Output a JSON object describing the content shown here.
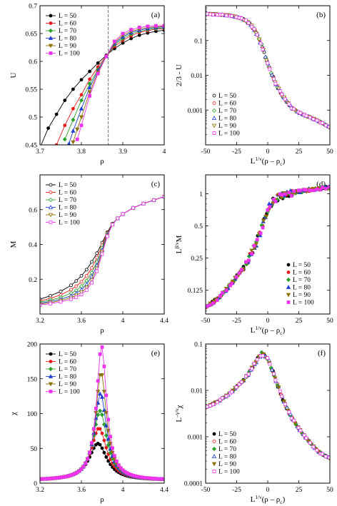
{
  "colors": {
    "L50": "#000000",
    "L60": "#e41a1c",
    "L70": "#2ca02c",
    "L80": "#1f3fd0",
    "L90": "#8c7000",
    "L100": "#ee33ee"
  },
  "chart_data": [
    {
      "type": "line",
      "tag": "(a)",
      "xlabel": "ρ",
      "ylabel": "U",
      "xlim": [
        3.7,
        4.0
      ],
      "ylim": [
        0.45,
        0.7
      ],
      "yscale": "linear",
      "xticks": [
        3.7,
        3.8,
        3.9,
        4.0
      ],
      "xtick_labels": [
        "3.7",
        "3.8",
        "3.9",
        "4"
      ],
      "yticks": [
        0.45,
        0.5,
        0.55,
        0.6,
        0.65,
        0.7
      ],
      "ytick_labels": [
        "0.45",
        "0.5",
        "0.55",
        "0.6",
        "0.65",
        "0.7"
      ],
      "vline": 3.865,
      "legend_position": "top-left",
      "legend_markers": "filled",
      "series": [
        {
          "name": "L = 50",
          "color_key": "L50",
          "x": [
            3.7,
            3.72,
            3.74,
            3.76,
            3.78,
            3.8,
            3.82,
            3.84,
            3.86,
            3.88,
            3.9,
            3.92,
            3.94,
            3.96,
            3.98,
            4.0
          ],
          "y": [
            0.445,
            0.48,
            0.505,
            0.53,
            0.55,
            0.567,
            0.582,
            0.597,
            0.611,
            0.623,
            0.633,
            0.641,
            0.647,
            0.651,
            0.654,
            0.656
          ]
        },
        {
          "name": "L = 60",
          "color_key": "L60",
          "x": [
            3.74,
            3.76,
            3.78,
            3.8,
            3.82,
            3.84,
            3.86,
            3.88,
            3.9,
            3.92,
            3.94,
            3.96,
            3.98,
            4.0
          ],
          "y": [
            0.45,
            0.485,
            0.515,
            0.54,
            0.568,
            0.59,
            0.61,
            0.627,
            0.638,
            0.646,
            0.652,
            0.655,
            0.658,
            0.659
          ]
        },
        {
          "name": "L = 70",
          "color_key": "L70",
          "x": [
            3.76,
            3.78,
            3.8,
            3.82,
            3.84,
            3.86,
            3.88,
            3.9,
            3.92,
            3.94,
            3.96,
            3.98,
            4.0
          ],
          "y": [
            0.46,
            0.495,
            0.53,
            0.56,
            0.585,
            0.609,
            0.63,
            0.641,
            0.649,
            0.654,
            0.657,
            0.659,
            0.66
          ]
        },
        {
          "name": "L = 80",
          "color_key": "L80",
          "x": [
            3.77,
            3.78,
            3.8,
            3.82,
            3.84,
            3.86,
            3.88,
            3.9,
            3.92,
            3.94,
            3.96,
            3.98,
            4.0
          ],
          "y": [
            0.452,
            0.475,
            0.515,
            0.553,
            0.583,
            0.609,
            0.632,
            0.644,
            0.652,
            0.656,
            0.659,
            0.661,
            0.662
          ]
        },
        {
          "name": "L = 90",
          "color_key": "L90",
          "x": [
            3.78,
            3.79,
            3.8,
            3.82,
            3.84,
            3.86,
            3.88,
            3.9,
            3.92,
            3.94,
            3.96,
            3.98,
            4.0
          ],
          "y": [
            0.455,
            0.478,
            0.5,
            0.545,
            0.58,
            0.609,
            0.634,
            0.647,
            0.654,
            0.658,
            0.661,
            0.662,
            0.663
          ]
        },
        {
          "name": "L = 100",
          "color_key": "L100",
          "x": [
            3.79,
            3.8,
            3.82,
            3.84,
            3.86,
            3.88,
            3.9,
            3.92,
            3.94,
            3.96,
            3.98,
            4.0
          ],
          "y": [
            0.46,
            0.485,
            0.538,
            0.578,
            0.609,
            0.636,
            0.65,
            0.657,
            0.661,
            0.663,
            0.664,
            0.664
          ]
        }
      ]
    },
    {
      "type": "scatter",
      "tag": "(b)",
      "xlabel": "L^{1/ν}(ρ – ρ_c)",
      "ylabel": "2/3 - U",
      "xlim": [
        -50,
        50
      ],
      "ylim": [
        0.0001,
        1.0
      ],
      "yscale": "log",
      "xticks": [
        -50,
        -25,
        0,
        25,
        50
      ],
      "xtick_labels": [
        "-50",
        "-25",
        "0",
        "25",
        "50"
      ],
      "yticks": [
        0.001,
        0.01,
        0.1
      ],
      "ytick_labels": [
        "0.001",
        "0.01",
        "0.1"
      ],
      "legend_position": "bottom-left",
      "legend_markers": "open",
      "curve": {
        "x": [
          -50,
          -40,
          -30,
          -20,
          -15,
          -10,
          -5,
          0,
          5,
          10,
          15,
          20,
          25,
          30,
          35,
          40,
          45,
          50
        ],
        "y": [
          0.58,
          0.56,
          0.52,
          0.42,
          0.32,
          0.19,
          0.075,
          0.022,
          0.0075,
          0.0033,
          0.0018,
          0.0011,
          0.00085,
          0.0007,
          0.0006,
          0.0005,
          0.0004,
          0.00032
        ]
      },
      "series": [
        {
          "name": "L = 50",
          "color_key": "L50"
        },
        {
          "name": "L = 60",
          "color_key": "L60"
        },
        {
          "name": "L = 70",
          "color_key": "L70"
        },
        {
          "name": "L = 80",
          "color_key": "L80"
        },
        {
          "name": "L = 90",
          "color_key": "L90"
        },
        {
          "name": "L = 100",
          "color_key": "L100"
        }
      ]
    },
    {
      "type": "line",
      "tag": "(c)",
      "xlabel": "ρ",
      "ylabel": "M",
      "xlim": [
        3.2,
        4.4
      ],
      "ylim": [
        0.0,
        0.8
      ],
      "yscale": "linear",
      "xticks": [
        3.2,
        3.6,
        4.0,
        4.4
      ],
      "xtick_labels": [
        "3.2",
        "3.6",
        "4",
        "4.4"
      ],
      "yticks": [
        0.2,
        0.4,
        0.6
      ],
      "ytick_labels": [
        "0.2",
        "0.4",
        "0.6"
      ],
      "legend_position": "top-left",
      "legend_markers": "open",
      "series": [
        {
          "name": "L = 50",
          "color_key": "L50",
          "x": [
            3.2,
            3.3,
            3.4,
            3.5,
            3.55,
            3.6,
            3.65,
            3.7,
            3.75,
            3.8,
            3.85,
            3.9,
            3.95,
            4.0,
            4.1,
            4.2,
            4.3,
            4.4
          ],
          "y": [
            0.085,
            0.105,
            0.13,
            0.165,
            0.19,
            0.22,
            0.255,
            0.3,
            0.35,
            0.41,
            0.47,
            0.52,
            0.55,
            0.575,
            0.61,
            0.635,
            0.655,
            0.675
          ]
        },
        {
          "name": "L = 60",
          "color_key": "L60",
          "x": [
            3.2,
            3.3,
            3.4,
            3.5,
            3.55,
            3.6,
            3.65,
            3.7,
            3.75,
            3.8,
            3.85,
            3.9,
            3.95,
            4.0,
            4.1,
            4.2,
            4.3,
            4.4
          ],
          "y": [
            0.075,
            0.09,
            0.11,
            0.14,
            0.16,
            0.185,
            0.22,
            0.265,
            0.325,
            0.395,
            0.465,
            0.518,
            0.55,
            0.575,
            0.61,
            0.635,
            0.655,
            0.675
          ]
        },
        {
          "name": "L = 70",
          "color_key": "L70",
          "x": [
            3.2,
            3.3,
            3.4,
            3.5,
            3.55,
            3.6,
            3.65,
            3.7,
            3.75,
            3.8,
            3.85,
            3.9,
            3.95,
            4.0,
            4.1,
            4.2,
            4.3,
            4.4
          ],
          "y": [
            0.068,
            0.08,
            0.095,
            0.12,
            0.135,
            0.16,
            0.192,
            0.238,
            0.3,
            0.38,
            0.46,
            0.517,
            0.55,
            0.575,
            0.61,
            0.635,
            0.655,
            0.675
          ]
        },
        {
          "name": "L = 80",
          "color_key": "L80",
          "x": [
            3.2,
            3.3,
            3.4,
            3.5,
            3.55,
            3.6,
            3.65,
            3.7,
            3.75,
            3.8,
            3.85,
            3.9,
            3.95,
            4.0,
            4.1,
            4.2,
            4.3,
            4.4
          ],
          "y": [
            0.062,
            0.072,
            0.085,
            0.105,
            0.12,
            0.14,
            0.17,
            0.215,
            0.28,
            0.367,
            0.455,
            0.516,
            0.55,
            0.575,
            0.61,
            0.635,
            0.655,
            0.675
          ]
        },
        {
          "name": "L = 90",
          "color_key": "L90",
          "x": [
            3.2,
            3.3,
            3.4,
            3.5,
            3.55,
            3.6,
            3.65,
            3.7,
            3.75,
            3.8,
            3.85,
            3.9,
            3.95,
            4.0,
            4.1,
            4.2,
            4.3,
            4.4
          ],
          "y": [
            0.057,
            0.066,
            0.077,
            0.094,
            0.107,
            0.125,
            0.153,
            0.196,
            0.262,
            0.356,
            0.451,
            0.515,
            0.55,
            0.575,
            0.61,
            0.635,
            0.655,
            0.675
          ]
        },
        {
          "name": "L = 100",
          "color_key": "L100",
          "x": [
            3.2,
            3.3,
            3.4,
            3.5,
            3.55,
            3.6,
            3.65,
            3.7,
            3.75,
            3.8,
            3.85,
            3.9,
            3.95,
            4.0,
            4.1,
            4.2,
            4.3,
            4.4
          ],
          "y": [
            0.052,
            0.06,
            0.07,
            0.085,
            0.096,
            0.112,
            0.138,
            0.18,
            0.246,
            0.345,
            0.447,
            0.514,
            0.55,
            0.575,
            0.61,
            0.635,
            0.655,
            0.675
          ]
        }
      ]
    },
    {
      "type": "scatter",
      "tag": "(d)",
      "xlabel": "L^{1/ν}(ρ – ρ_c)",
      "ylabel": "L^{β/ν}M",
      "xlim": [
        -50,
        50
      ],
      "ylim": [
        0.075,
        1.5
      ],
      "yscale": "log",
      "xticks": [
        -50,
        -25,
        0,
        25,
        50
      ],
      "xtick_labels": [
        "-50",
        "-25",
        "0",
        "25",
        "50"
      ],
      "yticks": [
        0.125,
        0.25,
        0.5,
        1
      ],
      "ytick_labels": [
        "0.125",
        "0.25",
        "0.5",
        "1"
      ],
      "legend_position": "bottom-right",
      "legend_markers": "filled",
      "curve": {
        "x": [
          -50,
          -40,
          -30,
          -20,
          -15,
          -10,
          -5,
          0,
          5,
          10,
          15,
          20,
          25,
          30,
          35,
          40,
          45,
          50
        ],
        "y": [
          0.085,
          0.105,
          0.14,
          0.2,
          0.25,
          0.33,
          0.47,
          0.72,
          0.88,
          0.95,
          0.99,
          1.02,
          1.05,
          1.07,
          1.09,
          1.11,
          1.13,
          1.15
        ]
      },
      "series": [
        {
          "name": "L = 50",
          "color_key": "L50"
        },
        {
          "name": "L = 60",
          "color_key": "L60"
        },
        {
          "name": "L = 70",
          "color_key": "L70"
        },
        {
          "name": "L = 80",
          "color_key": "L80"
        },
        {
          "name": "L = 90",
          "color_key": "L90"
        },
        {
          "name": "L = 100",
          "color_key": "L100"
        }
      ]
    },
    {
      "type": "line",
      "tag": "(e)",
      "xlabel": "ρ",
      "ylabel": "χ",
      "xlim": [
        3.2,
        4.4
      ],
      "ylim": [
        0,
        200
      ],
      "yscale": "linear",
      "xticks": [
        3.2,
        3.6,
        4.0,
        4.4
      ],
      "xtick_labels": [
        "3.2",
        "3.6",
        "4",
        "4.4"
      ],
      "yticks": [
        0,
        50,
        100,
        150,
        200
      ],
      "ytick_labels": [
        "0",
        "50",
        "100",
        "150",
        "200"
      ],
      "legend_position": "top-left",
      "legend_markers": "filled",
      "series": [
        {
          "name": "L = 50",
          "color_key": "L50",
          "peak": 57,
          "center": 3.76,
          "width": 0.11
        },
        {
          "name": "L = 60",
          "color_key": "L60",
          "peak": 79,
          "center": 3.77,
          "width": 0.095
        },
        {
          "name": "L = 70",
          "color_key": "L70",
          "peak": 104,
          "center": 3.78,
          "width": 0.085
        },
        {
          "name": "L = 80",
          "color_key": "L80",
          "peak": 129,
          "center": 3.785,
          "width": 0.075
        },
        {
          "name": "L = 90",
          "color_key": "L90",
          "peak": 159,
          "center": 3.79,
          "width": 0.068
        },
        {
          "name": "L = 100",
          "color_key": "L100",
          "peak": 197,
          "center": 3.795,
          "width": 0.062
        }
      ]
    },
    {
      "type": "scatter",
      "tag": "(f)",
      "xlabel": "L^{1/ν}(ρ – ρ_c)",
      "ylabel": "L^{–γ/ν}χ",
      "xlim": [
        -50,
        50
      ],
      "ylim": [
        0.0001,
        0.1
      ],
      "yscale": "log",
      "xticks": [
        -50,
        -25,
        0,
        25,
        50
      ],
      "xtick_labels": [
        "-50",
        "-25",
        "0",
        "25",
        "50"
      ],
      "yticks": [
        0.0001,
        0.001,
        0.01,
        0.1
      ],
      "ytick_labels": [
        "0.0001",
        "0.001",
        "0.01",
        "0.1"
      ],
      "legend_position": "bottom-left",
      "legend_markers": "mixed",
      "curve": {
        "x": [
          -50,
          -40,
          -30,
          -20,
          -15,
          -10,
          -5,
          0,
          5,
          10,
          15,
          20,
          25,
          30,
          35,
          40,
          45,
          50
        ],
        "y": [
          0.0042,
          0.0058,
          0.0088,
          0.016,
          0.024,
          0.04,
          0.062,
          0.05,
          0.022,
          0.009,
          0.0043,
          0.0024,
          0.0015,
          0.001,
          0.0007,
          0.0005,
          0.0004,
          0.00035
        ]
      },
      "series": [
        {
          "name": "L = 50",
          "color_key": "L50"
        },
        {
          "name": "L = 60",
          "color_key": "L60"
        },
        {
          "name": "L = 70",
          "color_key": "L70"
        },
        {
          "name": "L = 80",
          "color_key": "L80"
        },
        {
          "name": "L = 90",
          "color_key": "L90"
        },
        {
          "name": "L = 100",
          "color_key": "L100"
        }
      ]
    }
  ]
}
